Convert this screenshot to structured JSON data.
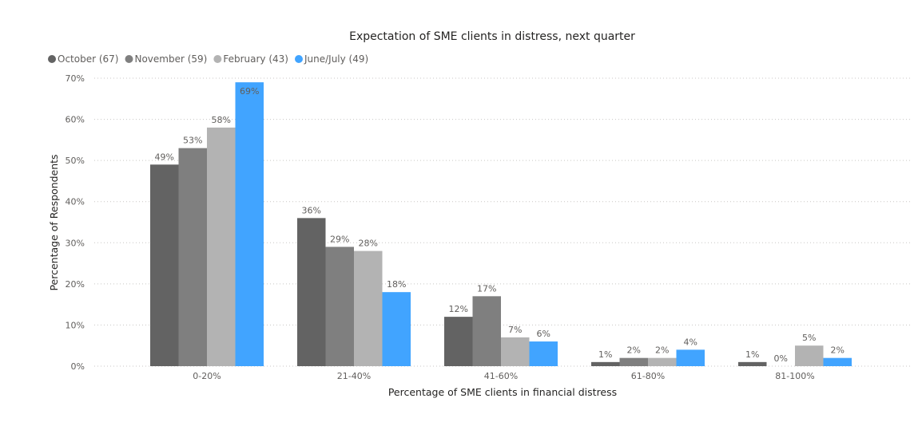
{
  "chart_data": {
    "type": "bar",
    "title": "Expectation of SME clients in distress, next quarter",
    "xlabel": "Percentage of SME clients in financial distress",
    "ylabel": "Percentage of Respondents",
    "categories": [
      "0-20%",
      "21-40%",
      "41-60%",
      "61-80%",
      "81-100%"
    ],
    "ylim": [
      0,
      70
    ],
    "yticks": [
      0,
      10,
      20,
      30,
      40,
      50,
      60,
      70
    ],
    "ytick_labels": [
      "0%",
      "10%",
      "20%",
      "30%",
      "40%",
      "50%",
      "60%",
      "70%"
    ],
    "grid": true,
    "legend_position": "top-left",
    "series": [
      {
        "name": "October (67)",
        "color": "#636363",
        "values": [
          49,
          36,
          12,
          1,
          1
        ],
        "labels": [
          "49%",
          "36%",
          "12%",
          "1%",
          "1%"
        ]
      },
      {
        "name": "November (59)",
        "color": "#7f7f7f",
        "values": [
          53,
          29,
          17,
          2,
          0
        ],
        "labels": [
          "53%",
          "29%",
          "17%",
          "2%",
          "0%"
        ]
      },
      {
        "name": "February (43)",
        "color": "#b3b3b3",
        "values": [
          58,
          28,
          7,
          2,
          5
        ],
        "labels": [
          "58%",
          "28%",
          "7%",
          "2%",
          "5%"
        ]
      },
      {
        "name": "June/July (49)",
        "color": "#41a4ff",
        "values": [
          69,
          18,
          6,
          4,
          2
        ],
        "labels": [
          "69%",
          "18%",
          "6%",
          "4%",
          "2%"
        ]
      }
    ]
  }
}
